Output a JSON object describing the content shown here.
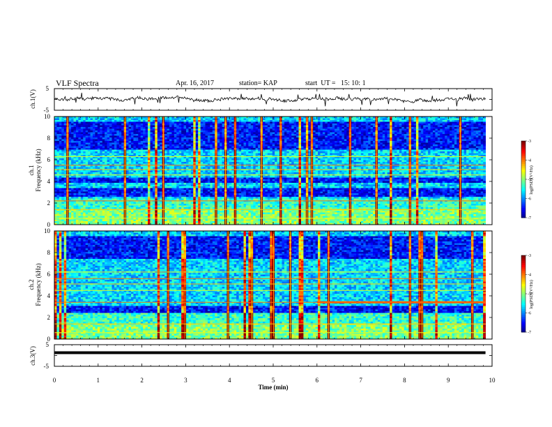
{
  "header": {
    "title": "VLF Spectra",
    "date": "Apr. 16, 2017",
    "station": "station= KAP",
    "start": "start  UT =   15: 10: 1"
  },
  "chart_data": [
    {
      "type": "line",
      "name": "ch1-waveform",
      "ylabel": "ch.1(V)",
      "ylim": [
        -5,
        5
      ],
      "yticks": [
        "5",
        "-5"
      ],
      "x_range": [
        0,
        9.85
      ],
      "y_level": 0,
      "y_noise_amplitude": 1.2
    },
    {
      "type": "heatmap",
      "name": "ch1-spectrogram",
      "ylabel_line1": "ch.1",
      "ylabel_line2": "Frequency (kHz)",
      "ylim": [
        0,
        10
      ],
      "yticks": [
        "0",
        "2",
        "4",
        "6",
        "8",
        "10"
      ],
      "x_range": [
        0,
        9.85
      ],
      "colorbar": {
        "label": "log(PSD)(V²/Hz)",
        "range": [
          -7,
          -3
        ],
        "ticks": [
          "-3",
          "-4",
          "-5",
          "-6",
          "-7"
        ]
      },
      "dark_bands_khz": [
        [
          2.6,
          3.4
        ],
        [
          3.9,
          4.3
        ],
        [
          7.0,
          9.5
        ]
      ],
      "strong_lines_khz": [
        0.6,
        1.4,
        2.2,
        4.6,
        5.1,
        5.5,
        6.3
      ]
    },
    {
      "type": "heatmap",
      "name": "ch2-spectrogram",
      "ylabel_line1": "ch.2",
      "ylabel_line2": "Frequency (kHz)",
      "ylim": [
        0,
        10
      ],
      "yticks": [
        "0",
        "2",
        "4",
        "6",
        "8",
        "10"
      ],
      "x_range": [
        0,
        9.85
      ],
      "colorbar": {
        "label": "log(PSD)(V²/Hz)",
        "range": [
          -7,
          -3
        ],
        "ticks": [
          "-3",
          "-4",
          "-5",
          "-6",
          "-7"
        ]
      },
      "dark_bands_khz": [
        [
          2.4,
          3.0
        ],
        [
          7.5,
          9.5
        ]
      ],
      "strong_lines_khz": [
        0.6,
        1.4,
        3.4,
        4.5,
        5.1,
        5.6,
        6.2
      ],
      "narrowband_segment": {
        "x_start": 6.0,
        "x_end": 9.85,
        "khz": 3.4
      }
    },
    {
      "type": "line",
      "name": "ch3-waveform",
      "ylabel": "ch.3(V)",
      "ylim": [
        -5,
        5
      ],
      "yticks": [
        "5",
        "-5"
      ],
      "x_range": [
        0,
        9.85
      ],
      "y_level": 1.3,
      "y_noise_amplitude": 0
    }
  ],
  "x_axis": {
    "label": "Time (min)",
    "range": [
      0,
      10
    ],
    "ticks": [
      "0",
      "1",
      "2",
      "3",
      "4",
      "5",
      "6",
      "7",
      "8",
      "9",
      "10"
    ]
  }
}
